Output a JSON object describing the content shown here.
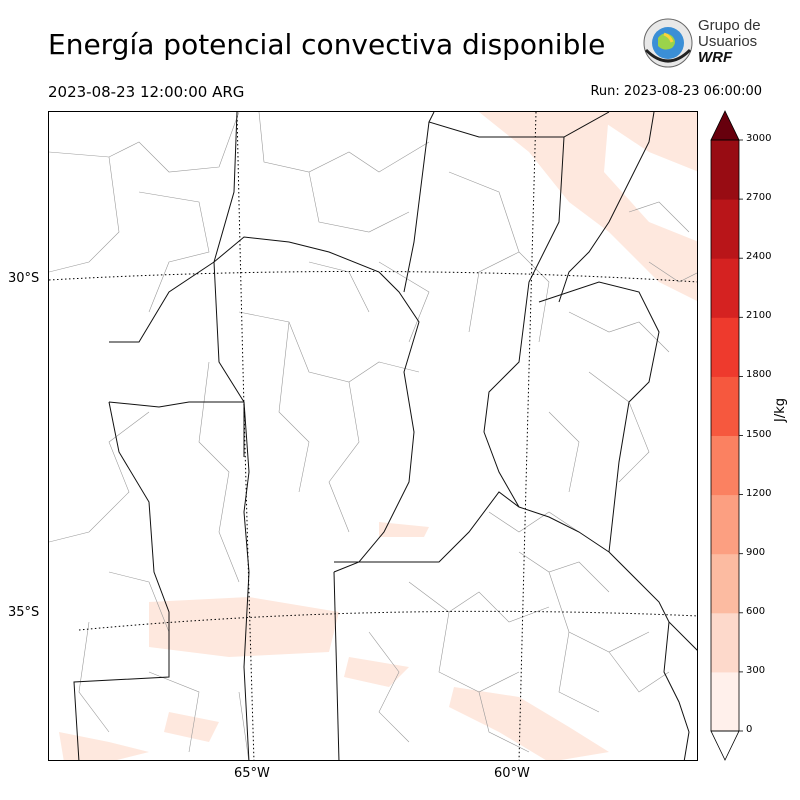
{
  "header": {
    "title": "Energía potencial convectiva disponible",
    "valid_time": "2023-08-23 12:00:00 ARG",
    "run_time": "Run: 2023-08-23 06:00:00"
  },
  "logo": {
    "line1": "Grupo de",
    "line2": "Usuarios",
    "line3": "WRF"
  },
  "map": {
    "lat_labels": [
      "30°S",
      "35°S"
    ],
    "lon_labels": [
      "65°W",
      "60°W"
    ],
    "field_color": "#fee8de"
  },
  "colorbar": {
    "label": "J/kg",
    "ticks": [
      "0",
      "300",
      "600",
      "900",
      "1200",
      "1500",
      "1800",
      "2100",
      "2400",
      "2700",
      "3000"
    ],
    "colors": [
      "#fff0eb",
      "#fdd9cb",
      "#fcbba1",
      "#fc9f81",
      "#fb8161",
      "#f6583e",
      "#ee3a2d",
      "#d52221",
      "#b91519",
      "#980c13",
      "#67000d"
    ],
    "extend": "both"
  }
}
